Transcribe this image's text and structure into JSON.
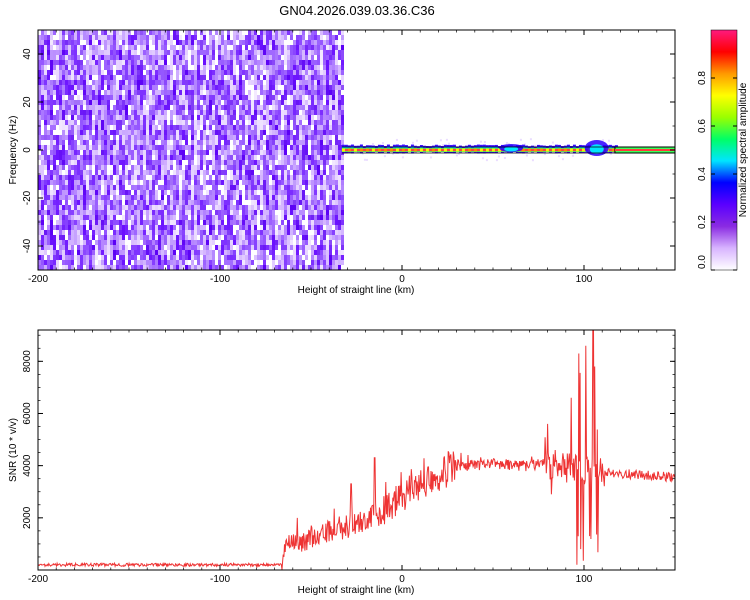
{
  "title": "GN04.2026.039.03.36.C36",
  "chart_data": [
    {
      "type": "heatmap",
      "xlabel": "Height of straight line (km)",
      "ylabel": "Frequency (Hz)",
      "xlim": [
        -200,
        150
      ],
      "ylim": [
        -50,
        50
      ],
      "x_ticks": [
        -200,
        -100,
        0,
        100
      ],
      "y_ticks": [
        -40,
        -20,
        0,
        20,
        40
      ],
      "noise_region_x": [
        -200,
        -33
      ],
      "signal_band_x": [
        -33,
        150
      ],
      "signal_center_frequency": 0,
      "colorbar": {
        "label": "Normalized spectral amplitude",
        "range": [
          0,
          1
        ],
        "ticks": [
          0.0,
          0.2,
          0.4,
          0.6,
          0.8
        ],
        "tick_labels": [
          "0.0",
          "0.2",
          "0.4",
          "0.6",
          "0.8"
        ],
        "colors": [
          "#ffffff",
          "#d8b4ff",
          "#8a2be2",
          "#5a00ff",
          "#0000ff",
          "#00e5ff",
          "#00ff66",
          "#9aff00",
          "#ffff00",
          "#ff9900",
          "#ff0000",
          "#ff1a7f"
        ]
      }
    },
    {
      "type": "line",
      "xlabel": "Height of straight line (km)",
      "ylabel": "SNR (10 * v/v)",
      "xlim": [
        -200,
        150
      ],
      "ylim": [
        0,
        9200
      ],
      "x_ticks": [
        -200,
        -100,
        0,
        100
      ],
      "y_ticks": [
        2000,
        4000,
        6000,
        8000
      ],
      "line_color": "#ee3333",
      "profile": [
        {
          "x": -200,
          "y": 200
        },
        {
          "x": -66,
          "y": 200
        },
        {
          "x": -64,
          "y": 900
        },
        {
          "x": -50,
          "y": 1200
        },
        {
          "x": -30,
          "y": 1700
        },
        {
          "x": -10,
          "y": 2300
        },
        {
          "x": 0,
          "y": 2800
        },
        {
          "x": 10,
          "y": 3300
        },
        {
          "x": 20,
          "y": 3700
        },
        {
          "x": 30,
          "y": 4000
        },
        {
          "x": 50,
          "y": 4050
        },
        {
          "x": 70,
          "y": 4000
        },
        {
          "x": 80,
          "y": 4100
        },
        {
          "x": 90,
          "y": 3900
        },
        {
          "x": 100,
          "y": 3800
        },
        {
          "x": 110,
          "y": 3800
        },
        {
          "x": 120,
          "y": 3700
        },
        {
          "x": 150,
          "y": 3550
        }
      ],
      "spikes": [
        {
          "x": -28,
          "y": 3300
        },
        {
          "x": -15,
          "y": 4300
        },
        {
          "x": 80,
          "y": 5600
        },
        {
          "x": 93,
          "y": 6600
        },
        {
          "x": 97,
          "y": 8300
        },
        {
          "x": 101,
          "y": 8600
        },
        {
          "x": 105,
          "y": 9200
        },
        {
          "x": 106,
          "y": 7800
        }
      ],
      "dips": [
        {
          "x": 82,
          "y": 2900
        },
        {
          "x": 96,
          "y": 200
        },
        {
          "x": 98,
          "y": 800
        },
        {
          "x": 103,
          "y": 1300
        },
        {
          "x": 107,
          "y": 500
        }
      ]
    }
  ]
}
